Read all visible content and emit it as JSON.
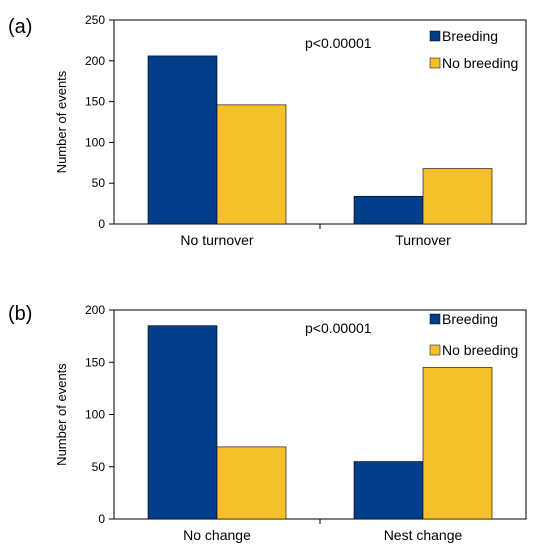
{
  "chart_data": [
    {
      "type": "bar",
      "panel_label": "(a)",
      "categories": [
        "No turnover",
        "Turnover"
      ],
      "series": [
        {
          "name": "Breeding",
          "values": [
            206,
            34
          ],
          "color": "#003e8a"
        },
        {
          "name": "No breeding",
          "values": [
            146,
            68
          ],
          "color": "#f5c02a"
        }
      ],
      "ylabel": "Number of events",
      "ylim": [
        0,
        250
      ],
      "yticks": [
        0,
        50,
        100,
        150,
        200,
        250
      ],
      "annotation": "p<0.00001",
      "grid": false,
      "legend_position": "top-right"
    },
    {
      "type": "bar",
      "panel_label": "(b)",
      "categories": [
        "No change",
        "Nest change"
      ],
      "series": [
        {
          "name": "Breeding",
          "values": [
            185,
            55
          ],
          "color": "#003e8a"
        },
        {
          "name": "No breeding",
          "values": [
            69,
            145
          ],
          "color": "#f5c02a"
        }
      ],
      "ylabel": "Number of events",
      "ylim": [
        0,
        200
      ],
      "yticks": [
        0,
        50,
        100,
        150,
        200
      ],
      "annotation": "p<0.00001",
      "grid": false,
      "legend_position": "top-right"
    }
  ]
}
